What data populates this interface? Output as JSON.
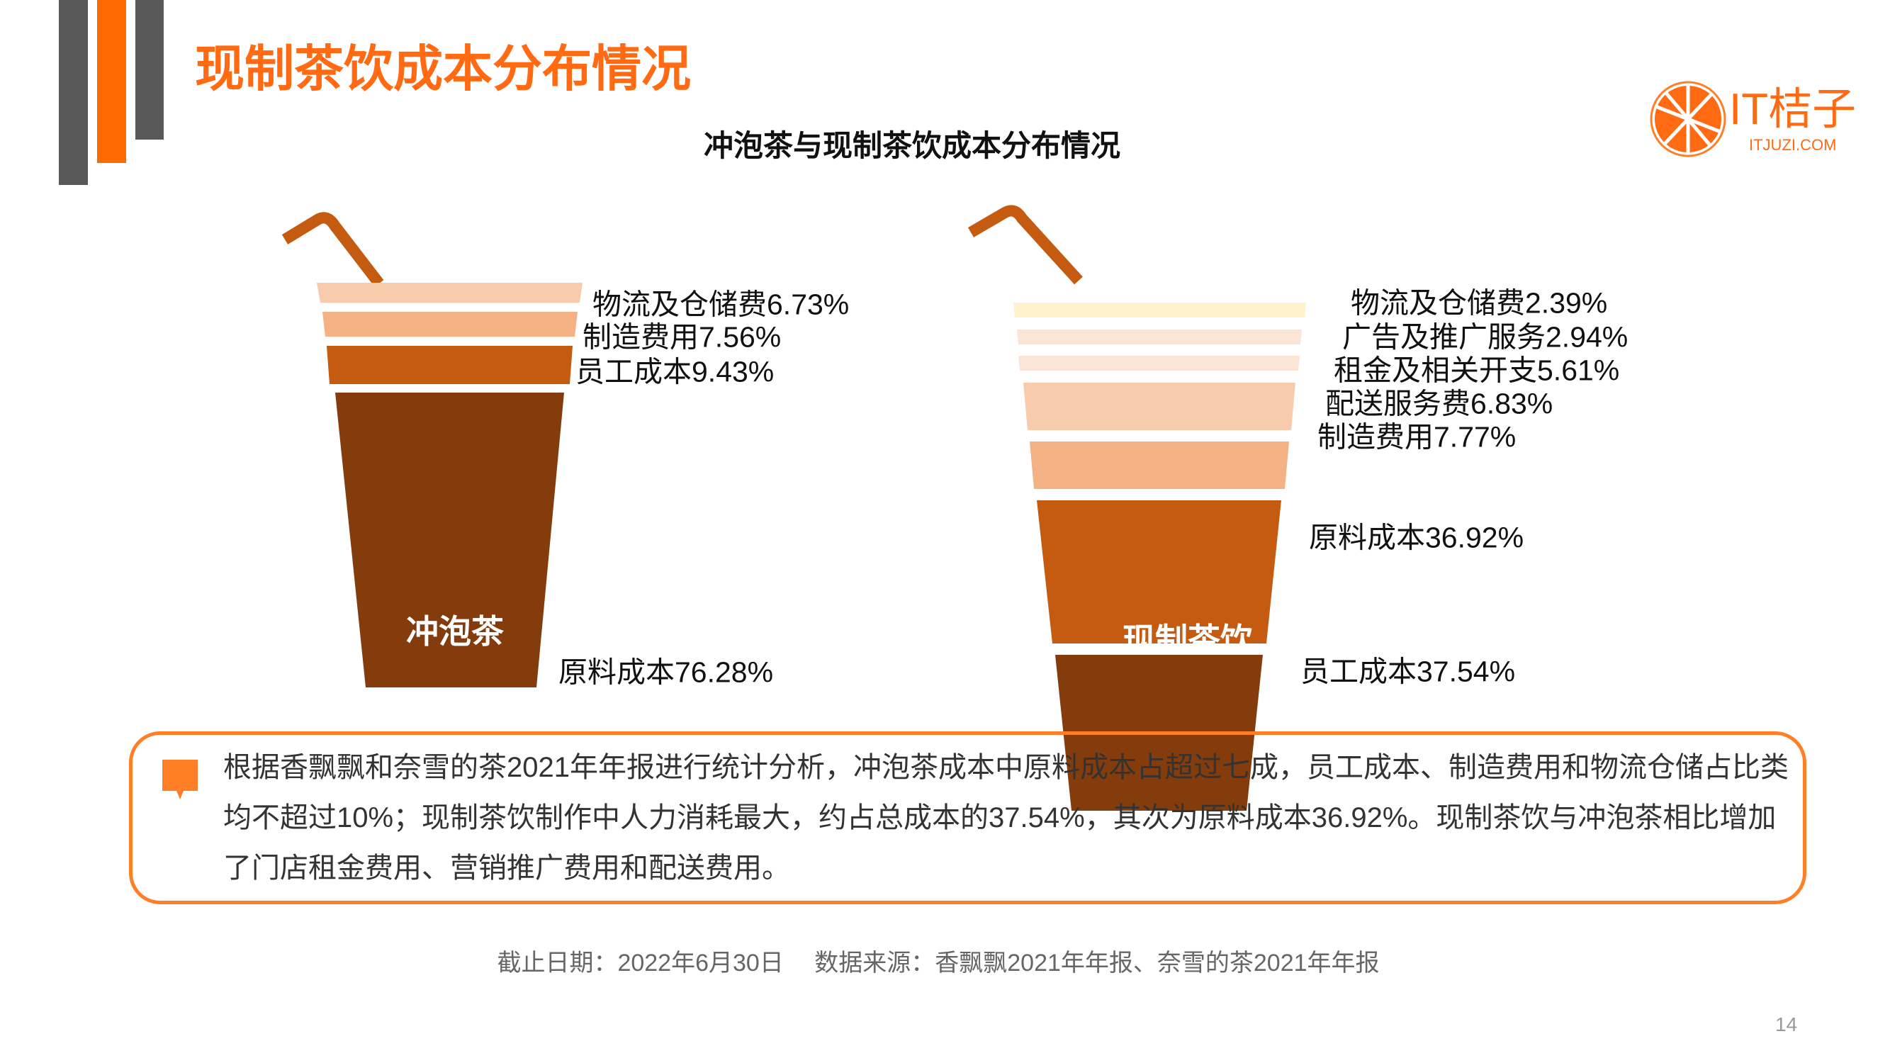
{
  "header": {
    "title": "现制茶饮成本分布情况",
    "subtitle": "冲泡茶与现制茶饮成本分布情况",
    "logo_text": "IT桔子",
    "logo_sub": "ITJUZI.COM"
  },
  "colors": {
    "accent": "#FF6A13",
    "bar_gray": "#595959",
    "pale_yellow": "#FFF2CC",
    "very_light": "#FBE5D6",
    "light": "#F8CBAD",
    "mid_light": "#F4B183",
    "mid": "#C55A11",
    "dark": "#843C0C"
  },
  "chart_data": {
    "type": "bar",
    "title": "冲泡茶与现制茶饮成本分布情况",
    "stacked": true,
    "unit": "%",
    "series": [
      {
        "name": "冲泡茶",
        "items": [
          {
            "label": "物流及仓储费6.73%",
            "category": "物流及仓储费",
            "value": 6.73
          },
          {
            "label": "制造费用7.56%",
            "category": "制造费用",
            "value": 7.56
          },
          {
            "label": "员工成本9.43%",
            "category": "员工成本",
            "value": 9.43
          },
          {
            "label": "原料成本76.28%",
            "category": "原料成本",
            "value": 76.28
          }
        ]
      },
      {
        "name": "现制茶饮",
        "items": [
          {
            "label": "物流及仓储费2.39%",
            "category": "物流及仓储费",
            "value": 2.39
          },
          {
            "label": "广告及推广服务2.94%",
            "category": "广告及推广服务",
            "value": 2.94
          },
          {
            "label": "租金及相关开支5.61%",
            "category": "租金及相关开支",
            "value": 5.61
          },
          {
            "label": "配送服务费6.83%",
            "category": "配送服务费",
            "value": 6.83
          },
          {
            "label": "制造费用7.77%",
            "category": "制造费用",
            "value": 7.77
          },
          {
            "label": "原料成本36.92%",
            "category": "原料成本",
            "value": 36.92
          },
          {
            "label": "员工成本37.54%",
            "category": "员工成本",
            "value": 37.54
          }
        ]
      }
    ]
  },
  "summary": {
    "lines": [
      "根据香飘飘和奈雪的茶2021年年报进行统计分析，冲泡茶成本中原料成本占超过七成，员工成本、制造费用和物流仓储占比类",
      "均不超过10%；现制茶饮制作中人力消耗最大，约占总成本的37.54%，其次为原料成本36.92%。现制茶饮与冲泡茶相比增加",
      "了门店租金费用、营销推广费用和配送费用。"
    ]
  },
  "footer": {
    "source": "截止日期：2022年6月30日　 数据来源：香飘飘2021年年报、奈雪的茶2021年年报",
    "page_number": "14"
  }
}
